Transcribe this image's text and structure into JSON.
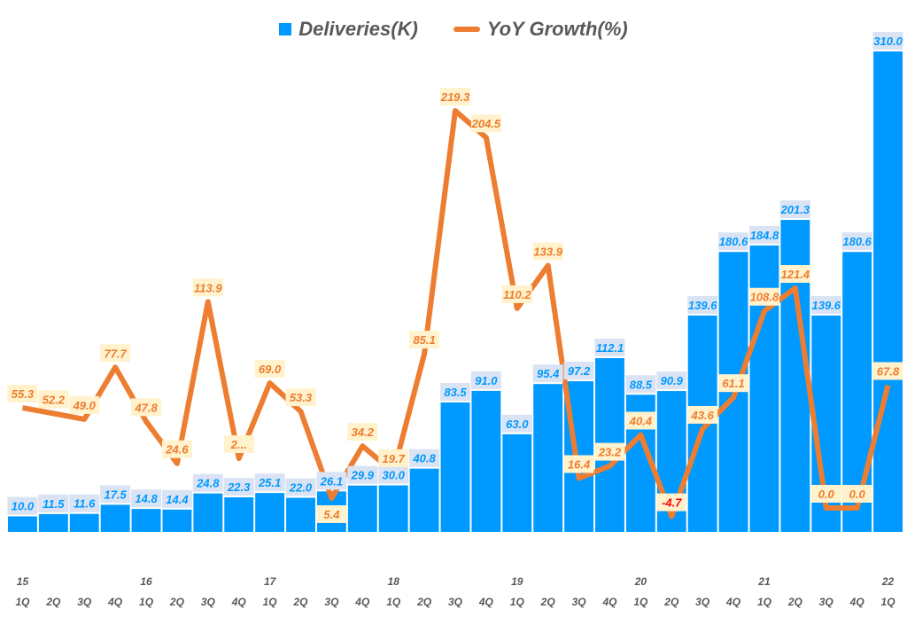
{
  "chart_data": {
    "type": "bar+line",
    "legend_position": "top",
    "grid": false,
    "year_labels": [
      "15",
      "",
      "",
      "",
      "16",
      "",
      "",
      "",
      "17",
      "",
      "",
      "",
      "18",
      "",
      "",
      "",
      "19",
      "",
      "",
      "",
      "20",
      "",
      "",
      "",
      "21",
      "",
      "",
      "",
      "22"
    ],
    "categories": [
      "1Q",
      "2Q",
      "3Q",
      "4Q",
      "1Q",
      "2Q",
      "3Q",
      "4Q",
      "1Q",
      "2Q",
      "3Q",
      "4Q",
      "1Q",
      "2Q",
      "3Q",
      "4Q",
      "1Q",
      "2Q",
      "3Q",
      "4Q",
      "1Q",
      "2Q",
      "3Q",
      "4Q",
      "1Q",
      "2Q",
      "3Q",
      "4Q",
      "1Q"
    ],
    "series": [
      {
        "name": "Deliveries(K)",
        "type": "bar",
        "color": "#0099ff",
        "values": [
          10.0,
          11.5,
          11.6,
          17.5,
          14.8,
          14.4,
          24.8,
          22.3,
          25.1,
          22.0,
          26.1,
          29.9,
          30.0,
          40.8,
          83.5,
          91.0,
          63.0,
          95.4,
          97.2,
          112.1,
          88.5,
          90.9,
          139.6,
          180.6,
          184.8,
          201.3,
          139.6,
          180.6,
          310.0
        ]
      },
      {
        "name": "YoY Growth(%)",
        "type": "line",
        "color": "#ed7d31",
        "values": [
          55.3,
          52.2,
          49.0,
          77.7,
          47.8,
          24.6,
          113.9,
          27.4,
          69.0,
          53.3,
          5.4,
          34.2,
          19.7,
          85.1,
          219.3,
          204.5,
          110.2,
          133.9,
          16.4,
          23.2,
          40.4,
          -4.7,
          43.6,
          61.1,
          108.8,
          121.4,
          0.0,
          0.0,
          67.8
        ]
      }
    ],
    "growth_label_overrides": {
      "7": "2..."
    },
    "negative_label_color": "#ff0000"
  }
}
